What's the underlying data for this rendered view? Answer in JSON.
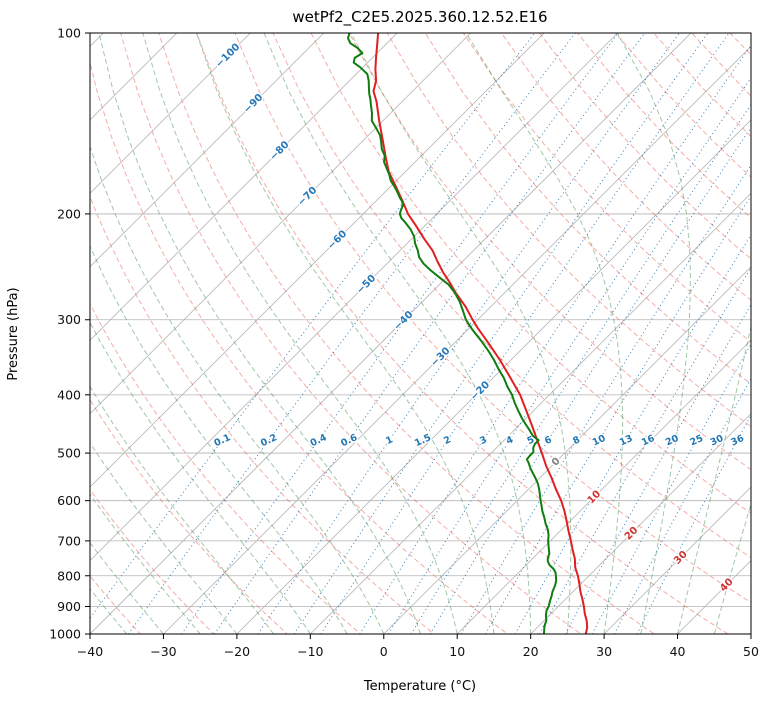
{
  "chart_data": {
    "type": "line",
    "subtype": "skewt-log-p-sounding",
    "title": "wetPf2_C2E5.2025.360.12.52.E16",
    "xlabel": "Temperature (°C)",
    "ylabel": "Pressure (hPa)",
    "xlim": [
      -40,
      50
    ],
    "pressure_lim": [
      1000,
      100
    ],
    "skew_degrees": 45,
    "x_ticks": [
      {
        "v": -40,
        "label": "−40"
      },
      {
        "v": -30,
        "label": "−30"
      },
      {
        "v": -20,
        "label": "−20"
      },
      {
        "v": -10,
        "label": "−10"
      },
      {
        "v": 0,
        "label": "0"
      },
      {
        "v": 10,
        "label": "10"
      },
      {
        "v": 20,
        "label": "20"
      },
      {
        "v": 30,
        "label": "30"
      },
      {
        "v": 40,
        "label": "40"
      },
      {
        "v": 50,
        "label": "50"
      }
    ],
    "p_ticks": [
      100,
      200,
      300,
      400,
      500,
      600,
      700,
      800,
      900,
      1000
    ],
    "isotherms": {
      "start": -160,
      "end": 50,
      "step": 10
    },
    "isotherm_labels": [
      {
        "t": -100,
        "p": 109,
        "color": "#2878b8"
      },
      {
        "t": -90,
        "p": 131,
        "color": "#2878b8"
      },
      {
        "t": -80,
        "p": 157,
        "color": "#2878b8"
      },
      {
        "t": -70,
        "p": 187,
        "color": "#2878b8"
      },
      {
        "t": -60,
        "p": 221,
        "color": "#2878b8"
      },
      {
        "t": -50,
        "p": 262,
        "color": "#2878b8"
      },
      {
        "t": -40,
        "p": 301,
        "color": "#2878b8"
      },
      {
        "t": -30,
        "p": 346,
        "color": "#2878b8"
      },
      {
        "t": -20,
        "p": 394,
        "color": "#2878b8"
      },
      {
        "t": 0,
        "p": 517,
        "color": "#808080"
      },
      {
        "t": 10,
        "p": 592,
        "color": "#cc3333"
      },
      {
        "t": 20,
        "p": 680,
        "color": "#cc3333"
      },
      {
        "t": 30,
        "p": 746,
        "color": "#cc3333"
      },
      {
        "t": 40,
        "p": 829,
        "color": "#cc3333"
      }
    ],
    "dry_adiabats": {
      "theta_start_K": 230,
      "theta_end_K": 470,
      "step_K": 10
    },
    "moist_adiabats": {
      "t_start_C": -40,
      "t_end_C": 50,
      "step_C": 5
    },
    "mixing_ratio_lines": [
      0.1,
      0.2,
      0.4,
      0.6,
      1,
      1.5,
      2,
      3,
      4,
      5,
      6,
      8,
      10,
      13,
      16,
      20,
      25,
      30,
      36
    ],
    "mixing_ratio_label_pressure": 476,
    "series": [
      {
        "name": "temperature",
        "color": "#e02020",
        "points": [
          [
            1000,
            27.5
          ],
          [
            975,
            26.8
          ],
          [
            950,
            25.8
          ],
          [
            925,
            24.6
          ],
          [
            900,
            23.5
          ],
          [
            875,
            22.3
          ],
          [
            850,
            21.0
          ],
          [
            825,
            19.8
          ],
          [
            800,
            18.5
          ],
          [
            775,
            17.0
          ],
          [
            750,
            15.8
          ],
          [
            725,
            14.3
          ],
          [
            700,
            12.8
          ],
          [
            675,
            11.2
          ],
          [
            650,
            9.6
          ],
          [
            625,
            7.9
          ],
          [
            600,
            6.0
          ],
          [
            575,
            3.8
          ],
          [
            550,
            1.6
          ],
          [
            525,
            -0.8
          ],
          [
            500,
            -3.1
          ],
          [
            475,
            -5.6
          ],
          [
            450,
            -8.2
          ],
          [
            425,
            -11.0
          ],
          [
            400,
            -14.0
          ],
          [
            375,
            -17.6
          ],
          [
            350,
            -21.5
          ],
          [
            330,
            -25.0
          ],
          [
            310,
            -28.8
          ],
          [
            300,
            -30.7
          ],
          [
            285,
            -33.5
          ],
          [
            270,
            -36.8
          ],
          [
            260,
            -38.9
          ],
          [
            250,
            -41.2
          ],
          [
            240,
            -43.4
          ],
          [
            230,
            -45.6
          ],
          [
            220,
            -48.3
          ],
          [
            210,
            -51.0
          ],
          [
            200,
            -53.9
          ],
          [
            190,
            -56.5
          ],
          [
            180,
            -59.3
          ],
          [
            170,
            -62.3
          ],
          [
            160,
            -64.9
          ],
          [
            150,
            -67.6
          ],
          [
            140,
            -70.5
          ],
          [
            130,
            -73.5
          ],
          [
            125,
            -75.3
          ],
          [
            120,
            -76.4
          ],
          [
            115,
            -78.0
          ],
          [
            110,
            -79.5
          ],
          [
            105,
            -81.0
          ],
          [
            100,
            -82.6
          ]
        ]
      },
      {
        "name": "dewpoint",
        "color": "#0f7d0f",
        "points": [
          [
            1000,
            21.8
          ],
          [
            985,
            21.3
          ],
          [
            970,
            20.8
          ],
          [
            950,
            20.3
          ],
          [
            930,
            19.5
          ],
          [
            915,
            19.0
          ],
          [
            900,
            18.7
          ],
          [
            880,
            18.1
          ],
          [
            865,
            17.7
          ],
          [
            850,
            17.2
          ],
          [
            830,
            16.7
          ],
          [
            815,
            16.2
          ],
          [
            800,
            15.5
          ],
          [
            790,
            15.0
          ],
          [
            780,
            14.3
          ],
          [
            768,
            13.2
          ],
          [
            758,
            12.5
          ],
          [
            750,
            12.1
          ],
          [
            735,
            11.6
          ],
          [
            720,
            10.8
          ],
          [
            700,
            9.7
          ],
          [
            685,
            9.0
          ],
          [
            670,
            8.1
          ],
          [
            655,
            7.0
          ],
          [
            640,
            6.0
          ],
          [
            625,
            4.9
          ],
          [
            610,
            3.9
          ],
          [
            600,
            3.2
          ],
          [
            588,
            2.4
          ],
          [
            575,
            1.5
          ],
          [
            562,
            0.5
          ],
          [
            550,
            -0.6
          ],
          [
            540,
            -1.6
          ],
          [
            530,
            -2.6
          ],
          [
            520,
            -3.5
          ],
          [
            512,
            -4.3
          ],
          [
            505,
            -4.4
          ],
          [
            498,
            -4.4
          ],
          [
            490,
            -5.0
          ],
          [
            483,
            -5.3
          ],
          [
            476,
            -5.3
          ],
          [
            468,
            -6.7
          ],
          [
            458,
            -7.9
          ],
          [
            448,
            -9.2
          ],
          [
            438,
            -10.5
          ],
          [
            425,
            -12.1
          ],
          [
            412,
            -13.7
          ],
          [
            400,
            -15.1
          ],
          [
            388,
            -16.8
          ],
          [
            375,
            -18.5
          ],
          [
            362,
            -20.5
          ],
          [
            350,
            -22.3
          ],
          [
            338,
            -24.3
          ],
          [
            325,
            -26.7
          ],
          [
            312,
            -29.3
          ],
          [
            300,
            -31.6
          ],
          [
            290,
            -33.2
          ],
          [
            280,
            -34.9
          ],
          [
            270,
            -36.9
          ],
          [
            262,
            -38.8
          ],
          [
            255,
            -41.0
          ],
          [
            248,
            -43.2
          ],
          [
            242,
            -45.0
          ],
          [
            236,
            -46.5
          ],
          [
            230,
            -47.6
          ],
          [
            224,
            -48.9
          ],
          [
            218,
            -50.0
          ],
          [
            212,
            -51.5
          ],
          [
            207,
            -53.0
          ],
          [
            203,
            -54.3
          ],
          [
            200,
            -55.0
          ],
          [
            197,
            -55.4
          ],
          [
            194,
            -55.7
          ],
          [
            191,
            -56.3
          ],
          [
            188,
            -57.2
          ],
          [
            184,
            -58.3
          ],
          [
            180,
            -59.5
          ],
          [
            176,
            -60.8
          ],
          [
            172,
            -61.8
          ],
          [
            168,
            -63.0
          ],
          [
            164,
            -64.2
          ],
          [
            160,
            -65.0
          ],
          [
            156,
            -66.3
          ],
          [
            152,
            -67.3
          ],
          [
            148,
            -68.4
          ],
          [
            144,
            -69.9
          ],
          [
            140,
            -71.5
          ],
          [
            136,
            -72.5
          ],
          [
            132,
            -73.7
          ],
          [
            129,
            -74.6
          ],
          [
            126,
            -75.6
          ],
          [
            123,
            -76.5
          ],
          [
            120,
            -77.4
          ],
          [
            117,
            -78.5
          ],
          [
            114,
            -80.4
          ],
          [
            112,
            -81.9
          ],
          [
            110,
            -82.4
          ],
          [
            108,
            -82.0
          ],
          [
            106,
            -83.3
          ],
          [
            104,
            -85.0
          ],
          [
            102,
            -86.0
          ],
          [
            100,
            -86.5
          ]
        ]
      }
    ],
    "colors": {
      "grid": "#b3b3b3",
      "frame": "#000000",
      "dry_adiabat": "rgba(233,106,94,0.55)",
      "moist_adiabat": "rgba(46,134,63,0.45)",
      "mixing_ratio": "rgba(37,116,176,0.9)",
      "mixing_label": "#1f77b4",
      "temperature_line": "#e02020",
      "dewpoint_line": "#0f7d0f"
    },
    "legend": "none",
    "grid_on": true
  }
}
